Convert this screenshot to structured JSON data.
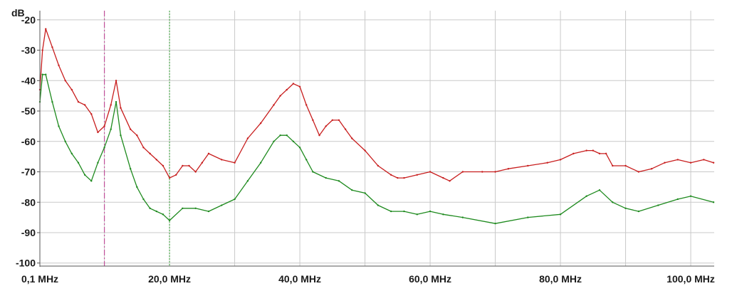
{
  "chart_data": {
    "type": "line",
    "title": "",
    "xlabel": "",
    "ylabel": "dB",
    "xlim": [
      0.1,
      103.6
    ],
    "ylim": [
      -101,
      -17
    ],
    "grid": true,
    "y_ticks": [
      -20,
      -30,
      -40,
      -50,
      -60,
      -70,
      -80,
      -90,
      -100
    ],
    "y_tick_labels": [
      "-20",
      "-30",
      "-40",
      "-50",
      "-60",
      "-70",
      "-80",
      "-90",
      "-100"
    ],
    "x_ticks": [
      0.1,
      20.0,
      40.0,
      60.0,
      80.0,
      100.0
    ],
    "x_tick_labels": [
      "0,1 MHz",
      "20,0 MHz",
      "40,0 MHz",
      "60,0 MHz",
      "80,0 MHz",
      "100,0 MHz"
    ],
    "x_gridlines": [
      0.1,
      10.0,
      20.0,
      30.0,
      40.0,
      50.0,
      60.0,
      70.0,
      80.0,
      90.0,
      100.0
    ],
    "markers": [
      {
        "x": 10.0,
        "color": "#c2509a",
        "style": "dash-dot"
      },
      {
        "x": 20.0,
        "color": "#4cae4c",
        "style": "dotted"
      }
    ],
    "series": [
      {
        "color": "#c81e1e",
        "x": [
          0.1,
          0.5,
          1.0,
          2.0,
          3.0,
          4.0,
          5.0,
          6.0,
          7.0,
          8.0,
          9.0,
          10.0,
          11.0,
          11.8,
          12.5,
          14.0,
          15.0,
          16.0,
          17.0,
          18.0,
          19.0,
          20.0,
          21.0,
          22.0,
          23.0,
          24.0,
          25.0,
          26.0,
          28.0,
          30.0,
          32.0,
          34.0,
          36.0,
          37.0,
          38.0,
          39.0,
          40.0,
          41.0,
          42.0,
          43.0,
          44.0,
          45.0,
          46.0,
          47.0,
          48.0,
          50.0,
          52.0,
          54.0,
          55.0,
          56.0,
          58.0,
          60.0,
          62.0,
          63.0,
          65.0,
          68.0,
          70.0,
          72.0,
          75.0,
          78.0,
          80.0,
          82.0,
          84.0,
          85.0,
          86.0,
          87.0,
          88.0,
          90.0,
          92.0,
          94.0,
          96.0,
          98.0,
          100.0,
          102.0,
          103.5
        ],
        "values": [
          -43,
          -30,
          -23,
          -29,
          -35,
          -40,
          -43,
          -47,
          -48,
          -51,
          -57,
          -55,
          -48,
          -40,
          -49,
          -56,
          -58,
          -62,
          -64,
          -66,
          -68,
          -72,
          -71,
          -68,
          -68,
          -70,
          -67,
          -64,
          -66,
          -67,
          -59,
          -54,
          -48,
          -45,
          -43,
          -41,
          -42,
          -48,
          -53,
          -58,
          -55,
          -53,
          -53,
          -56,
          -59,
          -63,
          -68,
          -71,
          -72,
          -72,
          -71,
          -70,
          -72,
          -73,
          -70,
          -70,
          -70,
          -69,
          -68,
          -67,
          -66,
          -64,
          -63,
          -63,
          -64,
          -64,
          -68,
          -68,
          -70,
          -69,
          -67,
          -66,
          -67,
          -66,
          -67
        ]
      },
      {
        "color": "#1e8a1e",
        "x": [
          0.1,
          0.5,
          1.0,
          2.0,
          3.0,
          4.0,
          5.0,
          6.0,
          7.0,
          8.0,
          9.0,
          10.0,
          11.0,
          11.8,
          12.5,
          14.0,
          15.0,
          16.0,
          17.0,
          18.0,
          19.0,
          20.0,
          22.0,
          24.0,
          26.0,
          28.0,
          30.0,
          32.0,
          34.0,
          36.0,
          37.0,
          38.0,
          39.0,
          40.0,
          41.0,
          42.0,
          44.0,
          46.0,
          48.0,
          50.0,
          52.0,
          54.0,
          56.0,
          58.0,
          60.0,
          62.0,
          65.0,
          70.0,
          75.0,
          80.0,
          84.0,
          86.0,
          88.0,
          90.0,
          92.0,
          95.0,
          98.0,
          100.0,
          103.5
        ],
        "values": [
          -47,
          -38,
          -38,
          -47,
          -55,
          -60,
          -64,
          -67,
          -71,
          -73,
          -67,
          -62,
          -56,
          -47,
          -58,
          -69,
          -75,
          -79,
          -82,
          -83,
          -84,
          -86,
          -82,
          -82,
          -83,
          -81,
          -79,
          -73,
          -67,
          -60,
          -58,
          -58,
          -60,
          -62,
          -66,
          -70,
          -72,
          -73,
          -76,
          -77,
          -81,
          -83,
          -83,
          -84,
          -83,
          -84,
          -85,
          -87,
          -85,
          -84,
          -78,
          -76,
          -80,
          -82,
          -83,
          -81,
          -79,
          -78,
          -80
        ]
      }
    ]
  }
}
